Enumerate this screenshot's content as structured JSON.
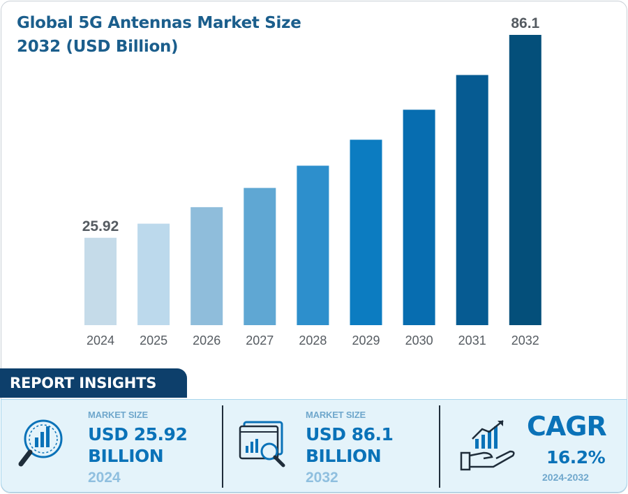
{
  "chart_data": {
    "type": "bar",
    "title": "Global 5G Antennas Market Size 2032 (USD Billion)",
    "categories": [
      "2024",
      "2025",
      "2026",
      "2027",
      "2028",
      "2029",
      "2030",
      "2031",
      "2032"
    ],
    "values": [
      25.92,
      30.1,
      35.0,
      40.7,
      47.3,
      55.0,
      63.9,
      74.2,
      86.1
    ],
    "data_labels": [
      "25.92",
      "",
      "",
      "",
      "",
      "",
      "",
      "",
      "86.1"
    ],
    "bar_colors": [
      "#c5dbe9",
      "#bcd9ec",
      "#8fbddb",
      "#5fa7d3",
      "#2d8fcc",
      "#0c7cc1",
      "#076db0",
      "#065b92",
      "#044f7a"
    ],
    "ylim": [
      0,
      86.1
    ],
    "grid": false,
    "xlabel": "",
    "ylabel": ""
  },
  "insights": {
    "badge": "REPORT INSIGHTS",
    "cards": [
      {
        "label": "MARKET SIZE",
        "value_line1": "USD  25.92",
        "value_line2": "BILLION",
        "year": "2024",
        "icon": "magnifier-chart-icon"
      },
      {
        "label": "MARKET SIZE",
        "value_line1": "USD  86.1",
        "value_line2": "BILLION",
        "year": "2032",
        "icon": "report-magnifier-icon"
      }
    ],
    "cagr": {
      "title": "CAGR",
      "value": "16.2%",
      "range": "2024-2032",
      "icon": "growth-hand-icon"
    }
  }
}
